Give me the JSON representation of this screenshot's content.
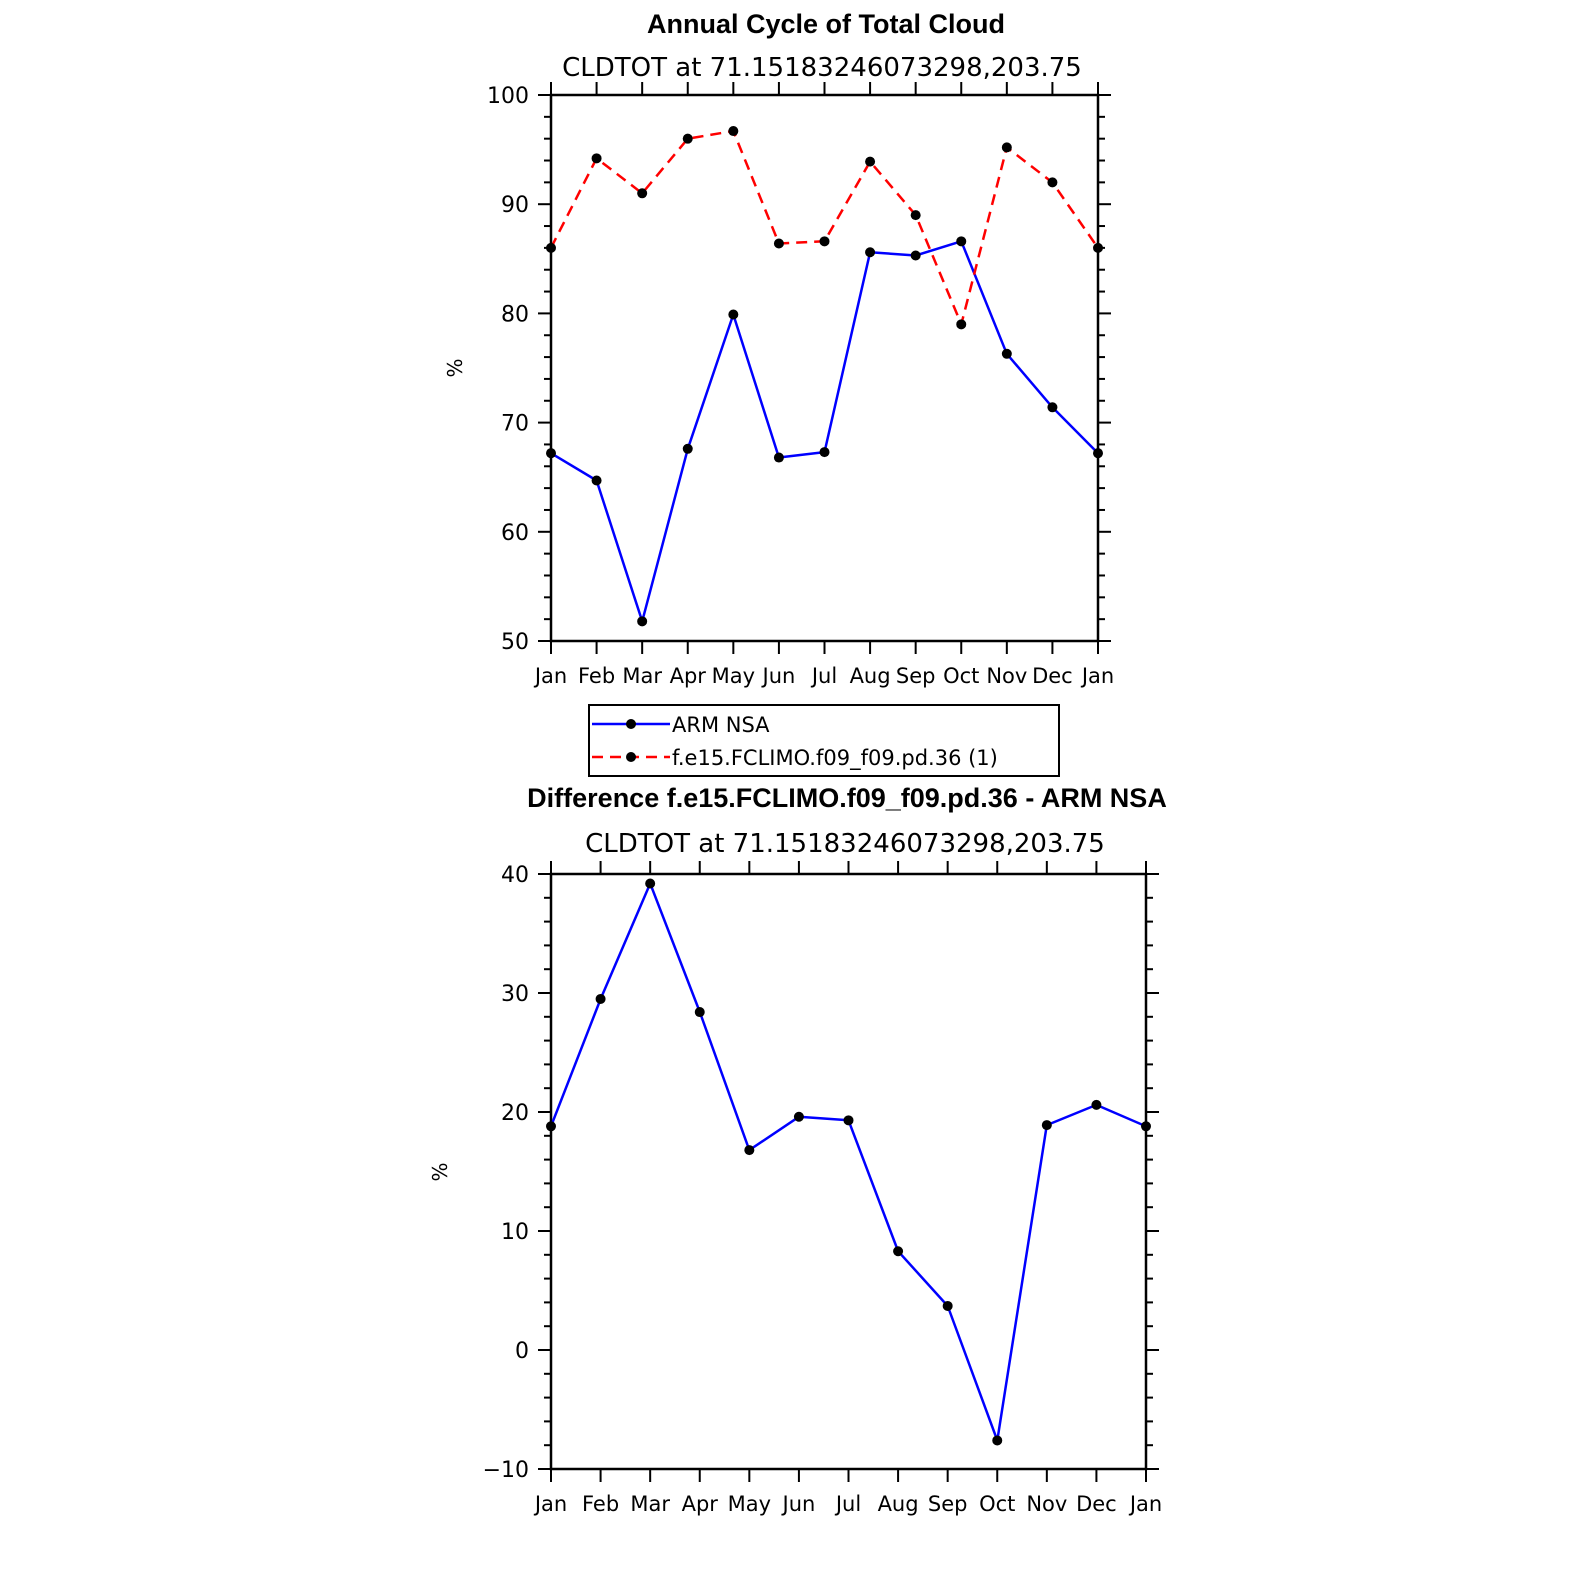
{
  "chart_data": [
    {
      "type": "line",
      "title": "Annual Cycle of Total Cloud",
      "subtitle": "CLDTOT at 71.15183246073298,203.75",
      "xlabel": "",
      "ylabel": "%",
      "categories": [
        "Jan",
        "Feb",
        "Mar",
        "Apr",
        "May",
        "Jun",
        "Jul",
        "Aug",
        "Sep",
        "Oct",
        "Nov",
        "Dec",
        "Jan"
      ],
      "ylim": [
        50,
        100
      ],
      "yticks": [
        "50",
        "60",
        "70",
        "80",
        "90",
        "100"
      ],
      "series": [
        {
          "name": "ARM NSA",
          "color": "#0000ff",
          "dash": "solid",
          "values": [
            67.2,
            64.7,
            51.8,
            67.6,
            79.9,
            66.8,
            67.3,
            85.6,
            85.3,
            86.6,
            76.3,
            71.4,
            67.2
          ]
        },
        {
          "name": "f.e15.FCLIMO.f09_f09.pd.36 (1)",
          "color": "#ff0000",
          "dash": "dashed",
          "values": [
            86.0,
            94.2,
            91.0,
            96.0,
            96.7,
            86.4,
            86.6,
            93.9,
            89.0,
            79.0,
            95.2,
            92.0,
            86.0
          ]
        }
      ],
      "legend": {
        "position": "below",
        "entries": [
          "ARM NSA",
          "f.e15.FCLIMO.f09_f09.pd.36 (1)"
        ]
      }
    },
    {
      "type": "line",
      "title": "Difference f.e15.FCLIMO.f09_f09.pd.36 - ARM NSA",
      "subtitle": "CLDTOT at 71.15183246073298,203.75",
      "xlabel": "",
      "ylabel": "%",
      "categories": [
        "Jan",
        "Feb",
        "Mar",
        "Apr",
        "May",
        "Jun",
        "Jul",
        "Aug",
        "Sep",
        "Oct",
        "Nov",
        "Dec",
        "Jan"
      ],
      "ylim": [
        -10,
        40
      ],
      "yticks": [
        "−10",
        "0",
        "10",
        "20",
        "30",
        "40"
      ],
      "series": [
        {
          "name": "Difference",
          "color": "#0000ff",
          "dash": "solid",
          "values": [
            18.8,
            29.5,
            39.2,
            28.4,
            16.8,
            19.6,
            19.3,
            8.3,
            3.7,
            -7.6,
            18.9,
            20.6,
            18.8
          ]
        }
      ]
    }
  ]
}
